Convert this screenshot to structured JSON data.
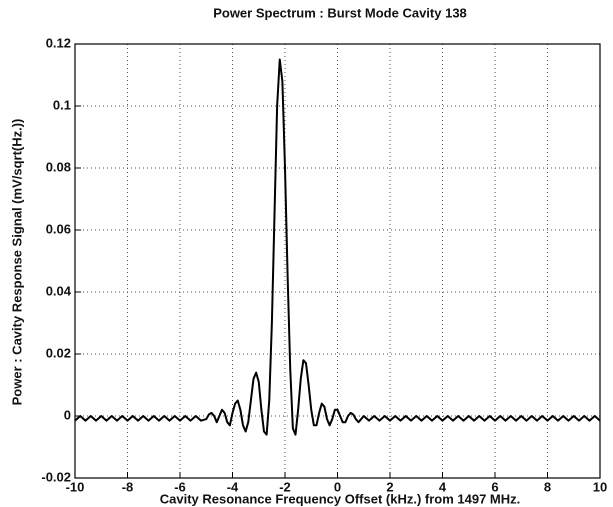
{
  "chart_data": {
    "type": "line",
    "title": "Power Spectrum : Burst Mode Cavity 138",
    "x_label": "Cavity Resonance Frequency Offset (kHz.) from 1497 MHz.",
    "y_label": "Power : Cavity Response Signal (mV/sqrt(Hz.))",
    "xlim": [
      -10,
      10
    ],
    "ylim": [
      -0.02,
      0.12
    ],
    "xticks": [
      -10,
      -8,
      -6,
      -4,
      -2,
      0,
      2,
      4,
      6,
      8,
      10
    ],
    "yticks": [
      -0.02,
      0,
      0.02,
      0.04,
      0.06,
      0.08,
      0.1,
      0.12
    ],
    "grid": true,
    "series": [
      {
        "color": "#000000",
        "x": [
          -10,
          -9.8,
          -9.6,
          -9.4,
          -9.2,
          -9,
          -8.8,
          -8.6,
          -8.4,
          -8.2,
          -8,
          -7.8,
          -7.6,
          -7.4,
          -7.2,
          -7,
          -6.8,
          -6.6,
          -6.4,
          -6.2,
          -6,
          -5.8,
          -5.6,
          -5.4,
          -5.2,
          -5,
          -4.9,
          -4.8,
          -4.7,
          -4.6,
          -4.5,
          -4.4,
          -4.3,
          -4.2,
          -4.1,
          -4,
          -3.9,
          -3.8,
          -3.7,
          -3.6,
          -3.5,
          -3.4,
          -3.3,
          -3.2,
          -3.1,
          -3,
          -2.9,
          -2.8,
          -2.7,
          -2.6,
          -2.5,
          -2.4,
          -2.3,
          -2.2,
          -2.1,
          -2,
          -1.9,
          -1.8,
          -1.7,
          -1.6,
          -1.5,
          -1.4,
          -1.3,
          -1.2,
          -1.1,
          -1,
          -0.9,
          -0.8,
          -0.7,
          -0.6,
          -0.5,
          -0.4,
          -0.3,
          -0.2,
          -0.1,
          0,
          0.1,
          0.2,
          0.3,
          0.4,
          0.5,
          0.6,
          0.7,
          0.8,
          0.9,
          1,
          1.2,
          1.4,
          1.6,
          1.8,
          2,
          2.2,
          2.4,
          2.6,
          2.8,
          3,
          3.2,
          3.4,
          3.6,
          3.8,
          4,
          4.2,
          4.4,
          4.6,
          4.8,
          5,
          5.2,
          5.4,
          5.6,
          5.8,
          6,
          6.2,
          6.4,
          6.6,
          6.8,
          7,
          7.2,
          7.4,
          7.6,
          7.8,
          8,
          8.2,
          8.4,
          8.6,
          8.8,
          9,
          9.2,
          9.4,
          9.6,
          9.8,
          10
        ],
        "values": [
          -0.0015,
          0,
          -0.0015,
          0,
          -0.0015,
          0,
          -0.0015,
          0,
          -0.0015,
          0,
          -0.0015,
          0,
          -0.0015,
          0,
          -0.0015,
          0,
          -0.0015,
          0,
          -0.0015,
          0,
          -0.0015,
          0,
          -0.0015,
          0,
          -0.0015,
          -0.001,
          0.0005,
          0.001,
          0,
          -0.002,
          0,
          0.002,
          0.001,
          -0.002,
          -0.003,
          0.001,
          0.004,
          0.005,
          0.002,
          -0.003,
          -0.005,
          -0.002,
          0.005,
          0.012,
          0.014,
          0.011,
          0.002,
          -0.005,
          -0.006,
          0.005,
          0.03,
          0.065,
          0.1,
          0.115,
          0.108,
          0.08,
          0.045,
          0.015,
          -0.004,
          -0.006,
          0.002,
          0.012,
          0.018,
          0.017,
          0.01,
          0.002,
          -0.003,
          -0.003,
          0.001,
          0.004,
          0.003,
          -0.001,
          -0.003,
          -0.001,
          0.002,
          0.002,
          0,
          -0.002,
          -0.002,
          0,
          0.001,
          0.0005,
          -0.001,
          -0.002,
          -0.001,
          0,
          -0.0015,
          0,
          -0.0015,
          0,
          -0.0015,
          0,
          -0.0015,
          0,
          -0.0015,
          0,
          -0.0015,
          0,
          -0.0015,
          0,
          -0.0015,
          0,
          -0.0015,
          0,
          -0.0015,
          0,
          -0.0015,
          0,
          -0.0015,
          0,
          -0.0015,
          0,
          -0.0015,
          0,
          -0.0015,
          0,
          -0.0015,
          0,
          -0.0015,
          0,
          -0.0015,
          0,
          -0.0015,
          0,
          -0.0015,
          0,
          -0.0015,
          0,
          -0.0015,
          0,
          -0.0015
        ]
      }
    ]
  }
}
